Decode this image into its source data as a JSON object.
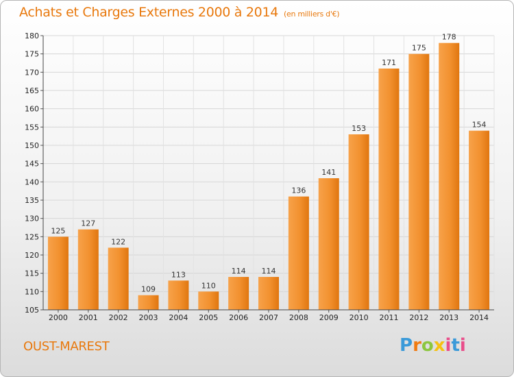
{
  "chart_data": {
    "type": "bar",
    "title": "Achats et Charges Externes 2000 à 2014",
    "subtitle": "(en milliers d'€)",
    "categories": [
      "2000",
      "2001",
      "2002",
      "2003",
      "2004",
      "2005",
      "2006",
      "2007",
      "2008",
      "2009",
      "2010",
      "2011",
      "2012",
      "2013",
      "2014"
    ],
    "values": [
      125,
      127,
      122,
      109,
      113,
      110,
      114,
      114,
      136,
      141,
      153,
      171,
      175,
      178,
      154
    ],
    "ylim": [
      105,
      180
    ],
    "yticks": [
      105,
      110,
      115,
      120,
      125,
      130,
      135,
      140,
      145,
      150,
      155,
      160,
      165,
      170,
      175,
      180
    ],
    "grid": true,
    "bar_color": "#f08a24",
    "xlabel": "",
    "ylabel": ""
  },
  "commune": "OUST-MAREST",
  "logo": {
    "text": "Proxiti"
  }
}
